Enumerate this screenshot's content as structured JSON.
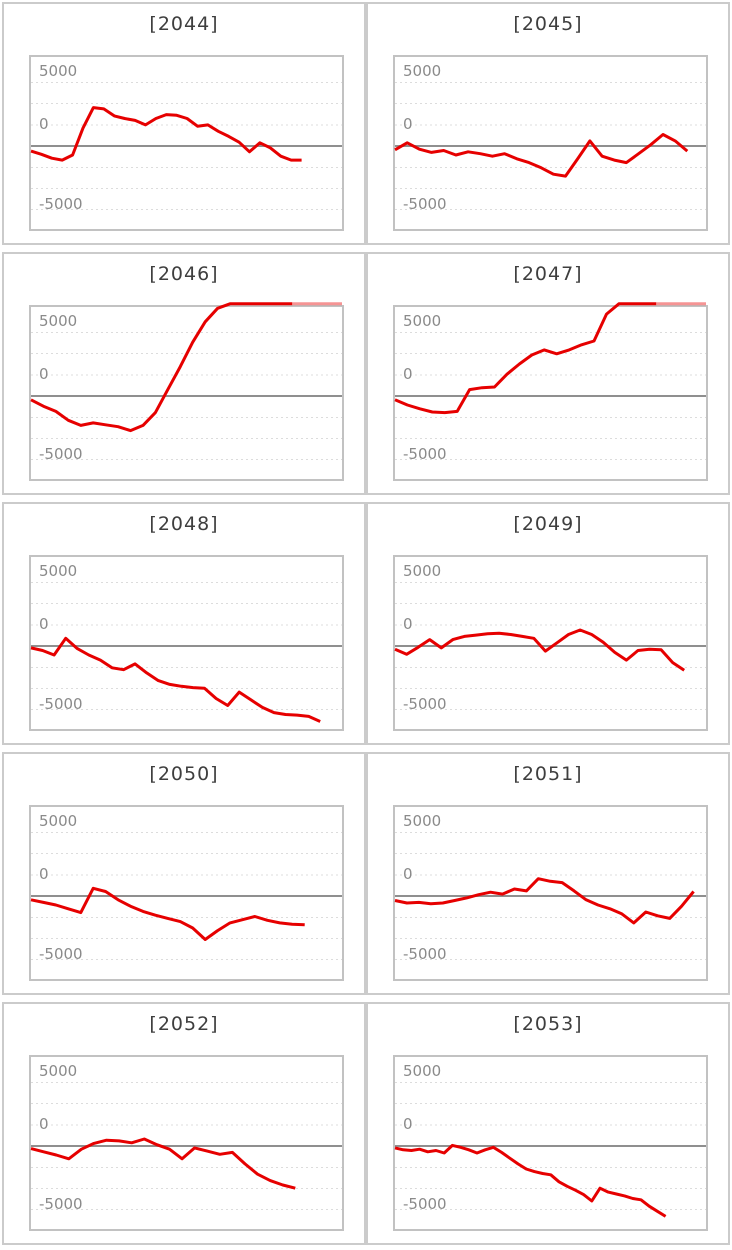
{
  "page": {
    "description": "Grid of ten slump line charts, machine numbers 2044-2053"
  },
  "colors": {
    "series_red": "#e60000",
    "series_red_faded": "rgba(230,0,0,0.42)",
    "zero_line": "#8f8f8f",
    "gridline": "#dcdcdc",
    "plot_border": "#c2c2c2",
    "cell_border": "#cbcbcb",
    "title_text": "#3e3e3e",
    "tick_text": "#8a8a8a"
  },
  "chart_data": {
    "type": "line",
    "legend": "none",
    "grid": "dashed horizontal lines, solid zero line",
    "ylabels": [
      "5000",
      "0",
      "-5000"
    ],
    "ylim": [
      -6500,
      6500
    ],
    "xlabel": "",
    "ylabel": "",
    "charts": [
      {
        "label": "[2044]",
        "span": 0.87,
        "fade_tail": 0,
        "values": [
          -400,
          -650,
          -950,
          -1100,
          -700,
          1400,
          3000,
          2900,
          2350,
          2150,
          2000,
          1650,
          2150,
          2450,
          2400,
          2150,
          1550,
          1650,
          1150,
          750,
          300,
          -450,
          250,
          -150,
          -800,
          -1100,
          -1100
        ]
      },
      {
        "label": "[2045]",
        "span": 0.94,
        "fade_tail": 0,
        "values": [
          -300,
          250,
          -250,
          -500,
          -350,
          -700,
          -450,
          -600,
          -800,
          -600,
          -1000,
          -1300,
          -1700,
          -2200,
          -2350,
          -1000,
          400,
          -800,
          -1100,
          -1300,
          -600,
          100,
          900,
          400,
          -400
        ]
      },
      {
        "label": "[2046]",
        "span": 1.0,
        "fade_tail": 4,
        "values": [
          -300,
          -800,
          -1200,
          -1900,
          -2300,
          -2100,
          -2250,
          -2400,
          -2700,
          -2300,
          -1300,
          500,
          2300,
          4200,
          5800,
          6850,
          7200,
          7200,
          7200,
          7200,
          7200,
          7200,
          7200,
          7200,
          7200,
          7200
        ]
      },
      {
        "label": "[2047]",
        "span": 1.0,
        "fade_tail": 4,
        "values": [
          -300,
          -700,
          -1000,
          -1250,
          -1300,
          -1200,
          500,
          650,
          700,
          1700,
          2500,
          3200,
          3600,
          3300,
          3600,
          4000,
          4300,
          6400,
          7200,
          7200,
          7200,
          7200,
          7200,
          7200,
          7200,
          7200
        ]
      },
      {
        "label": "[2048]",
        "span": 0.93,
        "fade_tail": 0,
        "values": [
          -150,
          -350,
          -700,
          600,
          -200,
          -700,
          -1100,
          -1700,
          -1850,
          -1400,
          -2100,
          -2700,
          -3000,
          -3150,
          -3250,
          -3300,
          -4100,
          -4650,
          -3600,
          -4200,
          -4800,
          -5200,
          -5350,
          -5400,
          -5500,
          -5900
        ]
      },
      {
        "label": "[2049]",
        "span": 0.93,
        "fade_tail": 0,
        "values": [
          -250,
          -650,
          -100,
          500,
          -150,
          500,
          750,
          850,
          950,
          1000,
          900,
          750,
          600,
          -400,
          250,
          900,
          1250,
          900,
          300,
          -500,
          -1100,
          -350,
          -250,
          -300,
          -1300,
          -1900
        ]
      },
      {
        "label": "[2050]",
        "span": 0.88,
        "fade_tail": 0,
        "values": [
          -300,
          -500,
          -700,
          -1000,
          -1300,
          600,
          350,
          -300,
          -800,
          -1200,
          -1500,
          -1750,
          -2000,
          -2500,
          -3400,
          -2700,
          -2100,
          -1850,
          -1600,
          -1900,
          -2100,
          -2200,
          -2250
        ]
      },
      {
        "label": "[2051]",
        "span": 0.96,
        "fade_tail": 0,
        "values": [
          -350,
          -550,
          -500,
          -600,
          -550,
          -350,
          -150,
          100,
          300,
          150,
          550,
          400,
          1350,
          1150,
          1050,
          400,
          -300,
          -700,
          -1000,
          -1400,
          -2100,
          -1250,
          -1550,
          -1750,
          -800,
          350
        ]
      },
      {
        "label": "[2052]",
        "span": 0.85,
        "fade_tail": 0,
        "values": [
          -200,
          -450,
          -700,
          -1000,
          -250,
          200,
          450,
          400,
          250,
          550,
          100,
          -250,
          -1000,
          -150,
          -400,
          -650,
          -500,
          -1400,
          -2200,
          -2700,
          -3050,
          -3300
        ]
      },
      {
        "label": "[2053]",
        "span": 0.87,
        "fade_tail": 0,
        "values": [
          -150,
          -300,
          -350,
          -250,
          -450,
          -350,
          -550,
          50,
          -100,
          -300,
          -550,
          -300,
          -100,
          -500,
          -950,
          -1400,
          -1800,
          -2000,
          -2150,
          -2250,
          -2800,
          -3150,
          -3450,
          -3800,
          -4300,
          -3300,
          -3600,
          -3750,
          -3900,
          -4100,
          -4200,
          -4700,
          -5100,
          -5500
        ]
      }
    ]
  }
}
